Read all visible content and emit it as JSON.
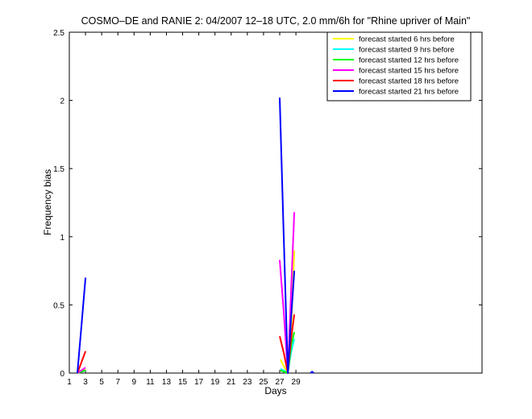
{
  "chart_data": {
    "type": "line",
    "title": "COSMO–DE and RANIE 2: 04/2007 12–18 UTC, 2.0 mm/6h for \"Rhine upriver of Main\"",
    "xlabel": "Days",
    "ylabel": "Frequency bias",
    "xlim": [
      1,
      52
    ],
    "ylim": [
      0,
      2.5
    ],
    "x_ticks": [
      1,
      3,
      5,
      7,
      9,
      11,
      13,
      15,
      17,
      19,
      21,
      23,
      25,
      27,
      29
    ],
    "y_ticks": [
      0,
      0.5,
      1,
      1.5,
      2,
      2.5
    ],
    "y_tick_labels": [
      "0",
      "0.5",
      "1",
      "1.5",
      "2",
      "2.5"
    ],
    "grid": false,
    "legend_position": "top-right",
    "series": [
      {
        "name": "forecast started 6 hrs before",
        "color": "#ffff00",
        "points": [
          [
            2,
            0
          ],
          [
            2.5,
            0.02
          ],
          [
            3,
            0.03
          ],
          null,
          [
            27.1,
            0.1
          ],
          [
            27.5,
            0.05
          ],
          [
            28,
            0
          ],
          [
            28.4,
            0.3
          ],
          [
            28.8,
            0.9
          ],
          null,
          [
            30.8,
            0
          ],
          [
            31,
            0.01
          ],
          [
            31.2,
            0
          ]
        ]
      },
      {
        "name": "forecast started 9 hrs before",
        "color": "#00ffff",
        "points": [
          [
            2,
            0
          ],
          [
            2.5,
            0.01
          ],
          [
            3,
            0.02
          ],
          null,
          [
            27.1,
            0.03
          ],
          [
            27.5,
            0.02
          ],
          [
            28,
            0
          ],
          [
            28.4,
            0.15
          ],
          [
            28.8,
            0.25
          ]
        ]
      },
      {
        "name": "forecast started 12 hrs before",
        "color": "#00ff00",
        "points": [
          [
            2,
            0
          ],
          [
            2.5,
            0.01
          ],
          [
            3,
            0.02
          ],
          null,
          [
            27.1,
            0.02
          ],
          [
            27.5,
            0.01
          ],
          [
            28,
            0
          ],
          [
            28.4,
            0.2
          ],
          [
            28.8,
            0.3
          ]
        ]
      },
      {
        "name": "forecast started 15 hrs before",
        "color": "#ff00ff",
        "points": [
          [
            2,
            0
          ],
          [
            2.5,
            0.02
          ],
          [
            3,
            0.04
          ],
          null,
          [
            27,
            0.83
          ],
          [
            27.5,
            0.45
          ],
          [
            28,
            0
          ],
          [
            28.4,
            0.6
          ],
          [
            28.8,
            1.18
          ]
        ]
      },
      {
        "name": "forecast started 18 hrs before",
        "color": "#ff0000",
        "points": [
          [
            2,
            0
          ],
          [
            2.5,
            0.08
          ],
          [
            3,
            0.16
          ],
          null,
          [
            27,
            0.27
          ],
          [
            27.5,
            0.15
          ],
          [
            28,
            0
          ],
          [
            28.4,
            0.25
          ],
          [
            28.8,
            0.43
          ]
        ]
      },
      {
        "name": "forecast started 21 hrs before",
        "color": "#0000ff",
        "points": [
          [
            2,
            0
          ],
          [
            2.5,
            0.35
          ],
          [
            3,
            0.7
          ],
          null,
          [
            27,
            2.02
          ],
          [
            27.5,
            1.0
          ],
          [
            28,
            0
          ],
          [
            28.4,
            0.4
          ],
          [
            28.8,
            0.75
          ],
          null,
          [
            30.8,
            0
          ],
          [
            31,
            0.01
          ],
          [
            31.2,
            0
          ]
        ]
      }
    ]
  }
}
